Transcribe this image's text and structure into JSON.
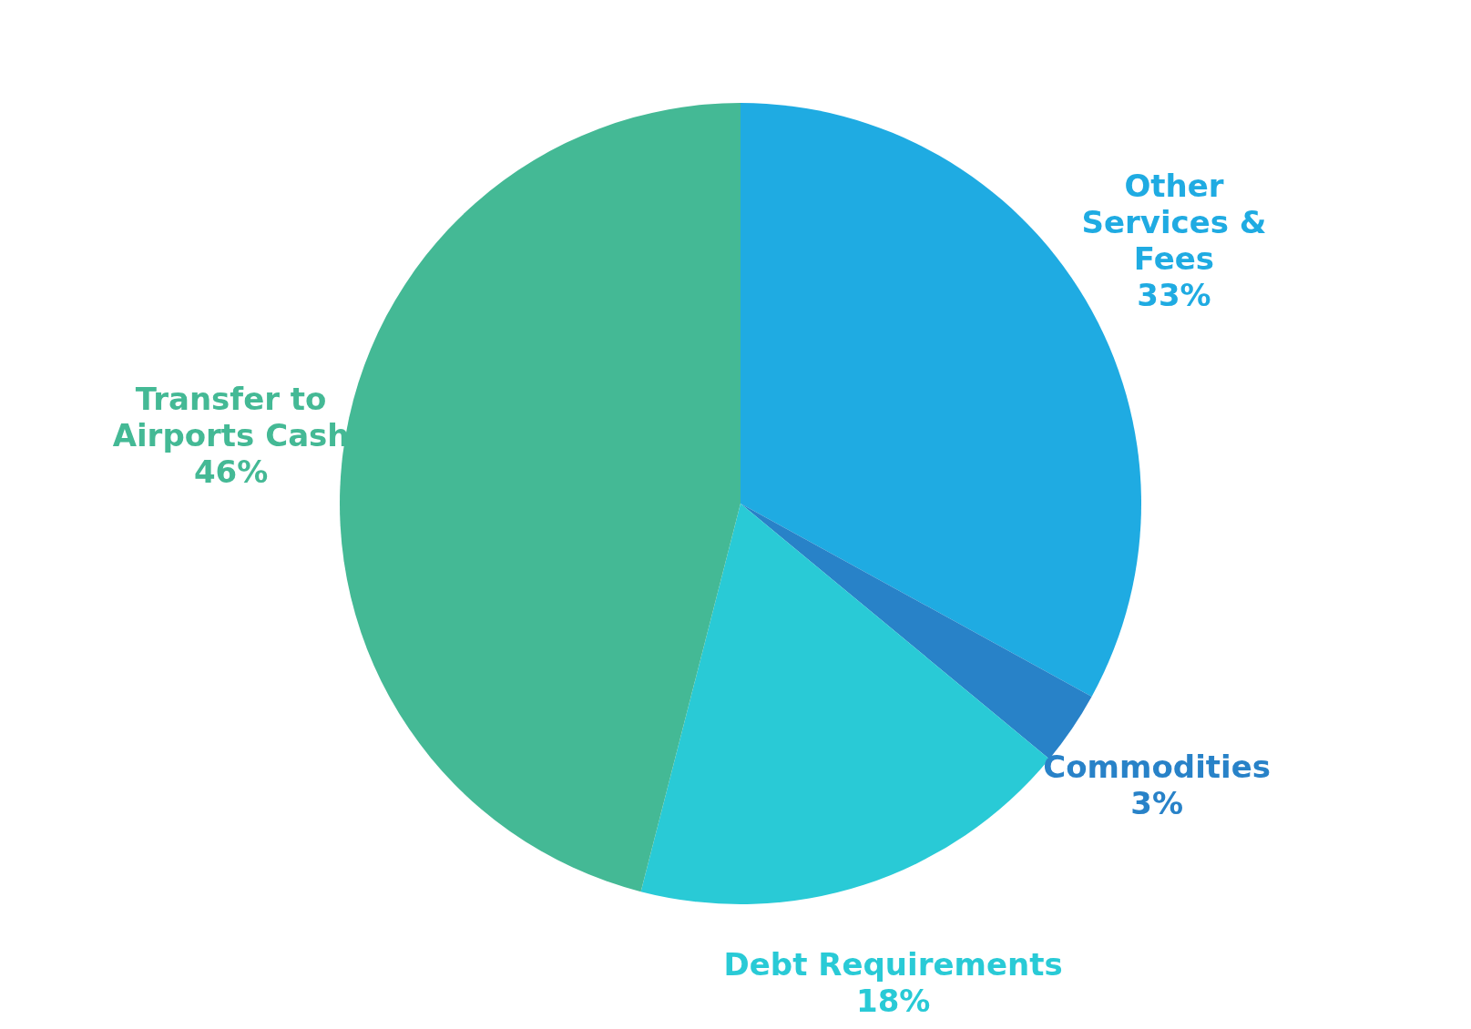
{
  "chart_data": {
    "type": "pie",
    "categories": [
      "Other Services & Fees",
      "Commodities",
      "Debt Requirements",
      "Transfer to Airports Cash"
    ],
    "values": [
      33,
      3,
      18,
      46
    ],
    "value_labels": [
      "33%",
      "3%",
      "18%",
      "46%"
    ],
    "colors": [
      "#1fabe2",
      "#2882c8",
      "#29cad6",
      "#44b995"
    ],
    "legend": false
  }
}
